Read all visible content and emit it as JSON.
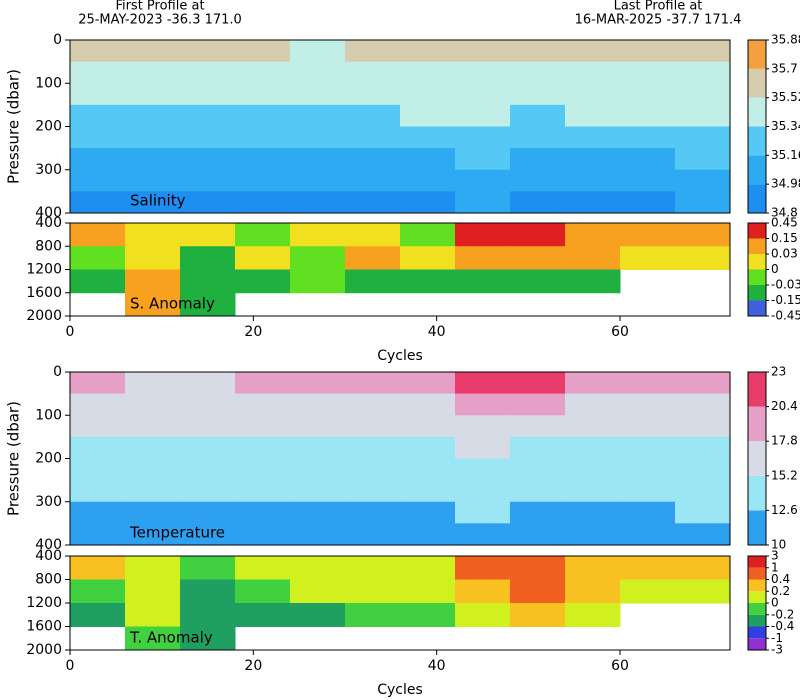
{
  "header": {
    "first_label": "First Profile at",
    "first_info": "25-MAY-2023   -36.3 171.0",
    "last_label": "Last Profile at",
    "last_info": "16-MAR-2025   -37.7 171.4"
  },
  "chart_data": [
    {
      "type": "heatmap",
      "annotation": "Salinity",
      "ylabel": "Pressure (dbar)",
      "xlim": [
        0,
        72
      ],
      "ylim": [
        0,
        400
      ],
      "yticks": [
        0,
        100,
        200,
        300,
        400
      ],
      "xbins": [
        0,
        6,
        12,
        18,
        24,
        30,
        36,
        42,
        48,
        54,
        60,
        66,
        72
      ],
      "ybins": [
        0,
        50,
        100,
        150,
        200,
        250,
        300,
        350,
        400
      ],
      "levels": [
        34.8,
        34.98,
        35.16,
        35.34,
        35.52,
        35.7,
        35.88
      ],
      "colors": [
        "#1e8ff0",
        "#2eaaf2",
        "#55c8f5",
        "#c2eee8",
        "#d6ccae",
        "#f5a040"
      ],
      "z": [
        [
          35.55,
          35.55,
          35.55,
          35.6,
          35.45,
          35.55,
          35.55,
          35.55,
          35.55,
          35.55,
          35.55,
          35.6
        ],
        [
          35.5,
          35.45,
          35.45,
          35.5,
          35.4,
          35.45,
          35.45,
          35.45,
          35.45,
          35.5,
          35.5,
          35.5
        ],
        [
          35.4,
          35.38,
          35.4,
          35.42,
          35.35,
          35.4,
          35.4,
          35.42,
          35.42,
          35.4,
          35.42,
          35.42
        ],
        [
          35.3,
          35.3,
          35.32,
          35.3,
          35.25,
          35.3,
          35.35,
          35.38,
          35.3,
          35.35,
          35.35,
          35.38
        ],
        [
          35.2,
          35.22,
          35.2,
          35.22,
          35.2,
          35.2,
          35.25,
          35.3,
          35.22,
          35.25,
          35.25,
          35.28
        ],
        [
          35.1,
          35.12,
          35.1,
          35.12,
          35.1,
          35.12,
          35.15,
          35.2,
          35.12,
          35.15,
          35.15,
          35.18
        ],
        [
          35.0,
          35.02,
          35.0,
          35.02,
          35.0,
          35.05,
          35.05,
          35.1,
          35.02,
          35.05,
          35.05,
          35.08
        ],
        [
          34.92,
          34.95,
          34.92,
          34.95,
          34.92,
          34.95,
          34.95,
          35.0,
          34.95,
          34.98,
          34.97,
          34.99
        ]
      ]
    },
    {
      "type": "heatmap",
      "annotation": "S. Anomaly",
      "xlabel": "Cycles",
      "xlim": [
        0,
        72
      ],
      "xticks": [
        0,
        20,
        40,
        60
      ],
      "ylim": [
        400,
        2000
      ],
      "yticks": [
        400,
        800,
        1200,
        1600,
        2000
      ],
      "xbins": [
        0,
        6,
        12,
        18,
        24,
        30,
        36,
        42,
        48,
        54,
        60,
        66,
        72
      ],
      "ybins": [
        400,
        800,
        1200,
        1600,
        2000
      ],
      "levels": [
        -0.45,
        -0.15,
        -0.03,
        0,
        0.03,
        0.15,
        0.45
      ],
      "colors": [
        "#4060e0",
        "#20b040",
        "#60e020",
        "#f0e020",
        "#f8a020",
        "#e02020"
      ],
      "z": [
        [
          0.05,
          0.03,
          0.02,
          -0.02,
          0.01,
          0.03,
          -0.01,
          0.2,
          0.2,
          0.1,
          0.05,
          0.04
        ],
        [
          -0.02,
          0.02,
          -0.05,
          0.01,
          -0.02,
          0.04,
          0.02,
          0.05,
          0.1,
          0.05,
          0.02,
          0.03
        ],
        [
          -0.05,
          0.05,
          -0.04,
          -0.06,
          -0.02,
          -0.05,
          -0.06,
          -0.04,
          -0.06,
          -0.05,
          null,
          null
        ],
        [
          null,
          0.05,
          -0.06,
          null,
          null,
          null,
          null,
          null,
          null,
          null,
          null,
          null
        ]
      ]
    },
    {
      "type": "heatmap",
      "annotation": "Temperature",
      "ylabel": "Pressure (dbar)",
      "xlim": [
        0,
        72
      ],
      "ylim": [
        0,
        400
      ],
      "yticks": [
        0,
        100,
        200,
        300,
        400
      ],
      "xbins": [
        0,
        6,
        12,
        18,
        24,
        30,
        36,
        42,
        48,
        54,
        60,
        66,
        72
      ],
      "ybins": [
        0,
        50,
        100,
        150,
        200,
        250,
        300,
        350,
        400
      ],
      "levels": [
        10,
        12.6,
        15.2,
        17.8,
        20.4,
        23
      ],
      "colors": [
        "#2ea0f0",
        "#9ae6f5",
        "#d6dbe6",
        "#e6a0c8",
        "#e83c6a"
      ],
      "z": [
        [
          18.5,
          17.8,
          17.5,
          18,
          20,
          19,
          20,
          20.5,
          21,
          18,
          18.5,
          20
        ],
        [
          17,
          16.5,
          16.2,
          16.5,
          17.5,
          17,
          17.5,
          18,
          18,
          16.5,
          17,
          17.5
        ],
        [
          15.5,
          15.3,
          15.3,
          15.8,
          15.5,
          16,
          16,
          16.5,
          16,
          15.5,
          16,
          16
        ],
        [
          14.8,
          14.5,
          14.5,
          14.5,
          14.8,
          15,
          15,
          15.3,
          14.5,
          14.8,
          15,
          15
        ],
        [
          13.8,
          13.5,
          13.5,
          13.8,
          14,
          14,
          14.2,
          14.5,
          13.5,
          14,
          14.2,
          14.3
        ],
        [
          13,
          12.8,
          12.8,
          13,
          13,
          13.3,
          13.3,
          13.5,
          12.8,
          13.2,
          13.3,
          13.5
        ],
        [
          12.2,
          12,
          12,
          12.3,
          12.3,
          12.5,
          12.5,
          12.8,
          12,
          12.4,
          12.5,
          12.7
        ],
        [
          11.5,
          11.3,
          11.2,
          11.5,
          11.5,
          11.8,
          11.8,
          12,
          11.3,
          11.7,
          11.8,
          12
        ]
      ]
    },
    {
      "type": "heatmap",
      "annotation": "T. Anomaly",
      "xlabel": "Cycles",
      "xlim": [
        0,
        72
      ],
      "xticks": [
        0,
        20,
        40,
        60
      ],
      "ylim": [
        400,
        2000
      ],
      "yticks": [
        400,
        800,
        1200,
        1600,
        2000
      ],
      "xbins": [
        0,
        6,
        12,
        18,
        24,
        30,
        36,
        42,
        48,
        54,
        60,
        66,
        72
      ],
      "ybins": [
        400,
        800,
        1200,
        1600,
        2000
      ],
      "levels": [
        -3,
        -1,
        -0.4,
        -0.2,
        0,
        0.2,
        0.4,
        1,
        3
      ],
      "colors": [
        "#9030d0",
        "#3040e0",
        "#20a060",
        "#40d040",
        "#d0f020",
        "#f8c020",
        "#f06020",
        "#e02020"
      ],
      "z": [
        [
          0.3,
          0.2,
          -0.1,
          0.1,
          0.2,
          0.1,
          0.05,
          0.6,
          0.8,
          0.4,
          0.3,
          0.3
        ],
        [
          -0.1,
          0.1,
          -0.3,
          -0.1,
          0.05,
          0.1,
          0.1,
          0.3,
          0.8,
          0.4,
          0.2,
          0.2
        ],
        [
          -0.2,
          0.1,
          -0.3,
          -0.3,
          -0.2,
          -0.1,
          -0.1,
          0.2,
          0.3,
          0.2,
          null,
          null
        ],
        [
          null,
          -0.1,
          -0.3,
          null,
          null,
          null,
          null,
          null,
          null,
          null,
          null,
          null
        ]
      ]
    }
  ]
}
